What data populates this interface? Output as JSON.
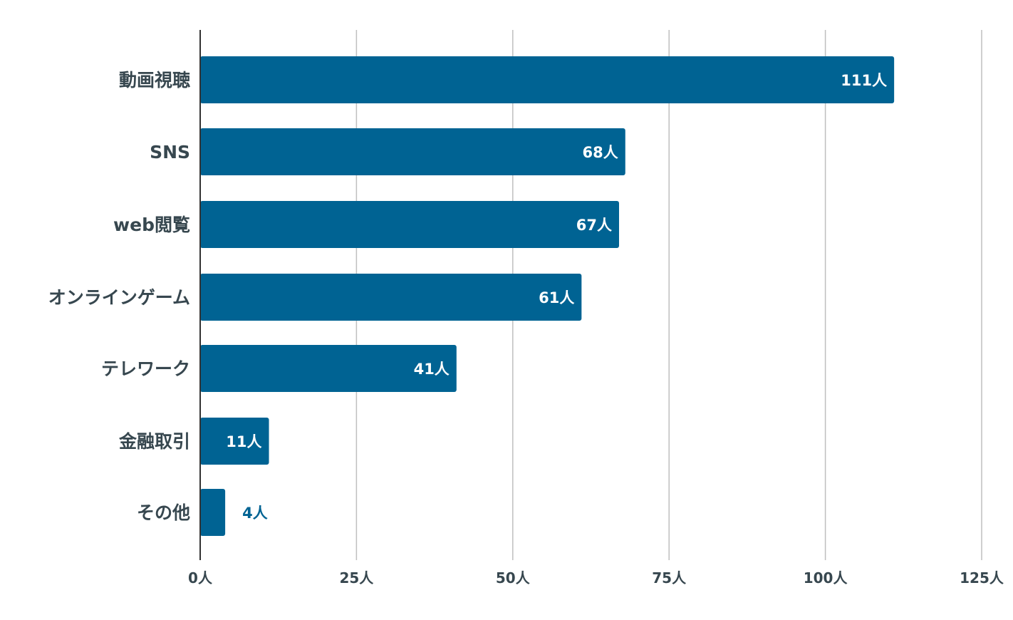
{
  "chart_data": {
    "type": "bar",
    "orientation": "horizontal",
    "categories": [
      "動画視聴",
      "SNS",
      "web閲覧",
      "オンラインゲーム",
      "テレワーク",
      "金融取引",
      "その他"
    ],
    "values": [
      111,
      68,
      67,
      61,
      41,
      11,
      4
    ],
    "value_labels": [
      "111人",
      "68人",
      "67人",
      "61人",
      "41人",
      "11人",
      "4人"
    ],
    "xlim": [
      0,
      125
    ],
    "x_ticks": [
      0,
      25,
      50,
      75,
      100,
      125
    ],
    "x_tick_labels": [
      "0人",
      "25人",
      "50人",
      "75人",
      "100人",
      "125人"
    ],
    "title": "",
    "xlabel": "",
    "ylabel": "",
    "grid": "vertical",
    "legend": "none",
    "colors": {
      "bar": "#006393",
      "label_inside": "#ffffff",
      "label_outside": "#006393",
      "category_text": "#37474f",
      "tick_text": "#37474f",
      "gridline": "#bfbfbf",
      "axis": "#333333"
    }
  }
}
